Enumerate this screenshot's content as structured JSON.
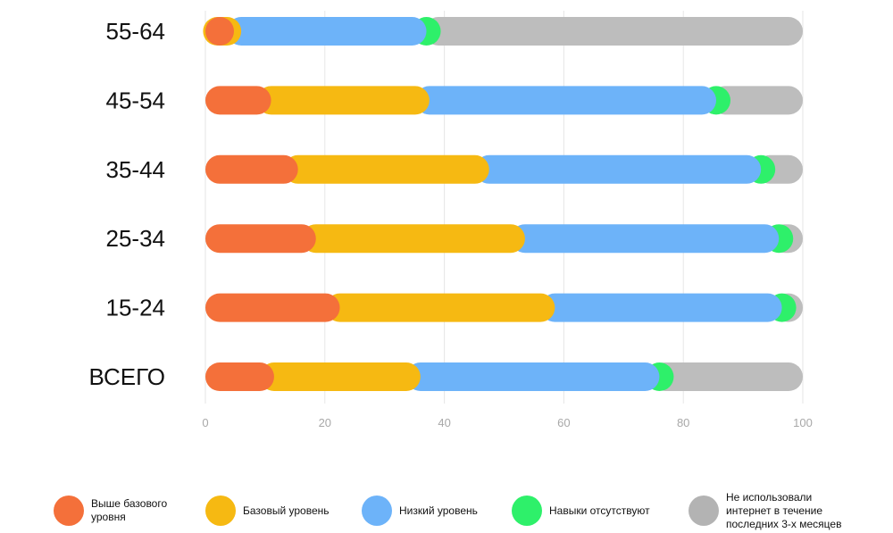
{
  "chart_data": {
    "type": "bar",
    "orientation": "horizontal",
    "stacked": true,
    "title": "",
    "xlabel": "",
    "ylabel": "",
    "xlim": [
      0,
      100
    ],
    "xticks": [
      0,
      20,
      40,
      60,
      80,
      100
    ],
    "grid": true,
    "categories": [
      "55-64",
      "45-54",
      "35-44",
      "25-34",
      "15-24",
      "ВСЕГО"
    ],
    "series": [
      {
        "name": "Выше базового уровня",
        "color": "#f4703a",
        "values": [
          2,
          11,
          15.5,
          18.5,
          22.5,
          11.5
        ]
      },
      {
        "name": "Базовый уровень",
        "color": "#f6b912",
        "values": [
          4,
          26.5,
          32,
          35,
          36,
          24.5
        ]
      },
      {
        "name": "Низкий уровень",
        "color": "#6db3f9",
        "values": [
          31,
          48,
          45.5,
          42.5,
          38,
          40
        ]
      },
      {
        "name": "Навыки отсутствуют",
        "color": "#2ef06a",
        "values": [
          2,
          1.5,
          1.5,
          1,
          1,
          1
        ]
      },
      {
        "name": "Не использовали интернет в течение последних 3-х месяцев",
        "color": "#bdbdbd",
        "values": [
          61,
          13,
          5.5,
          3,
          2.5,
          23
        ]
      }
    ],
    "legend_position": "bottom"
  },
  "legend": {
    "items": [
      {
        "lines": [
          "Выше базового",
          "уровня"
        ],
        "color": "#f4703a"
      },
      {
        "lines": [
          "Базовый уровень"
        ],
        "color": "#f6b912"
      },
      {
        "lines": [
          "Низкий уровень"
        ],
        "color": "#6db3f9"
      },
      {
        "lines": [
          "Навыки отсутствуют"
        ],
        "color": "#2ef06a"
      },
      {
        "lines": [
          "Не использовали",
          "интернет в течение",
          "последних 3-х месяцев"
        ],
        "color": "#b3b3b3"
      }
    ]
  }
}
